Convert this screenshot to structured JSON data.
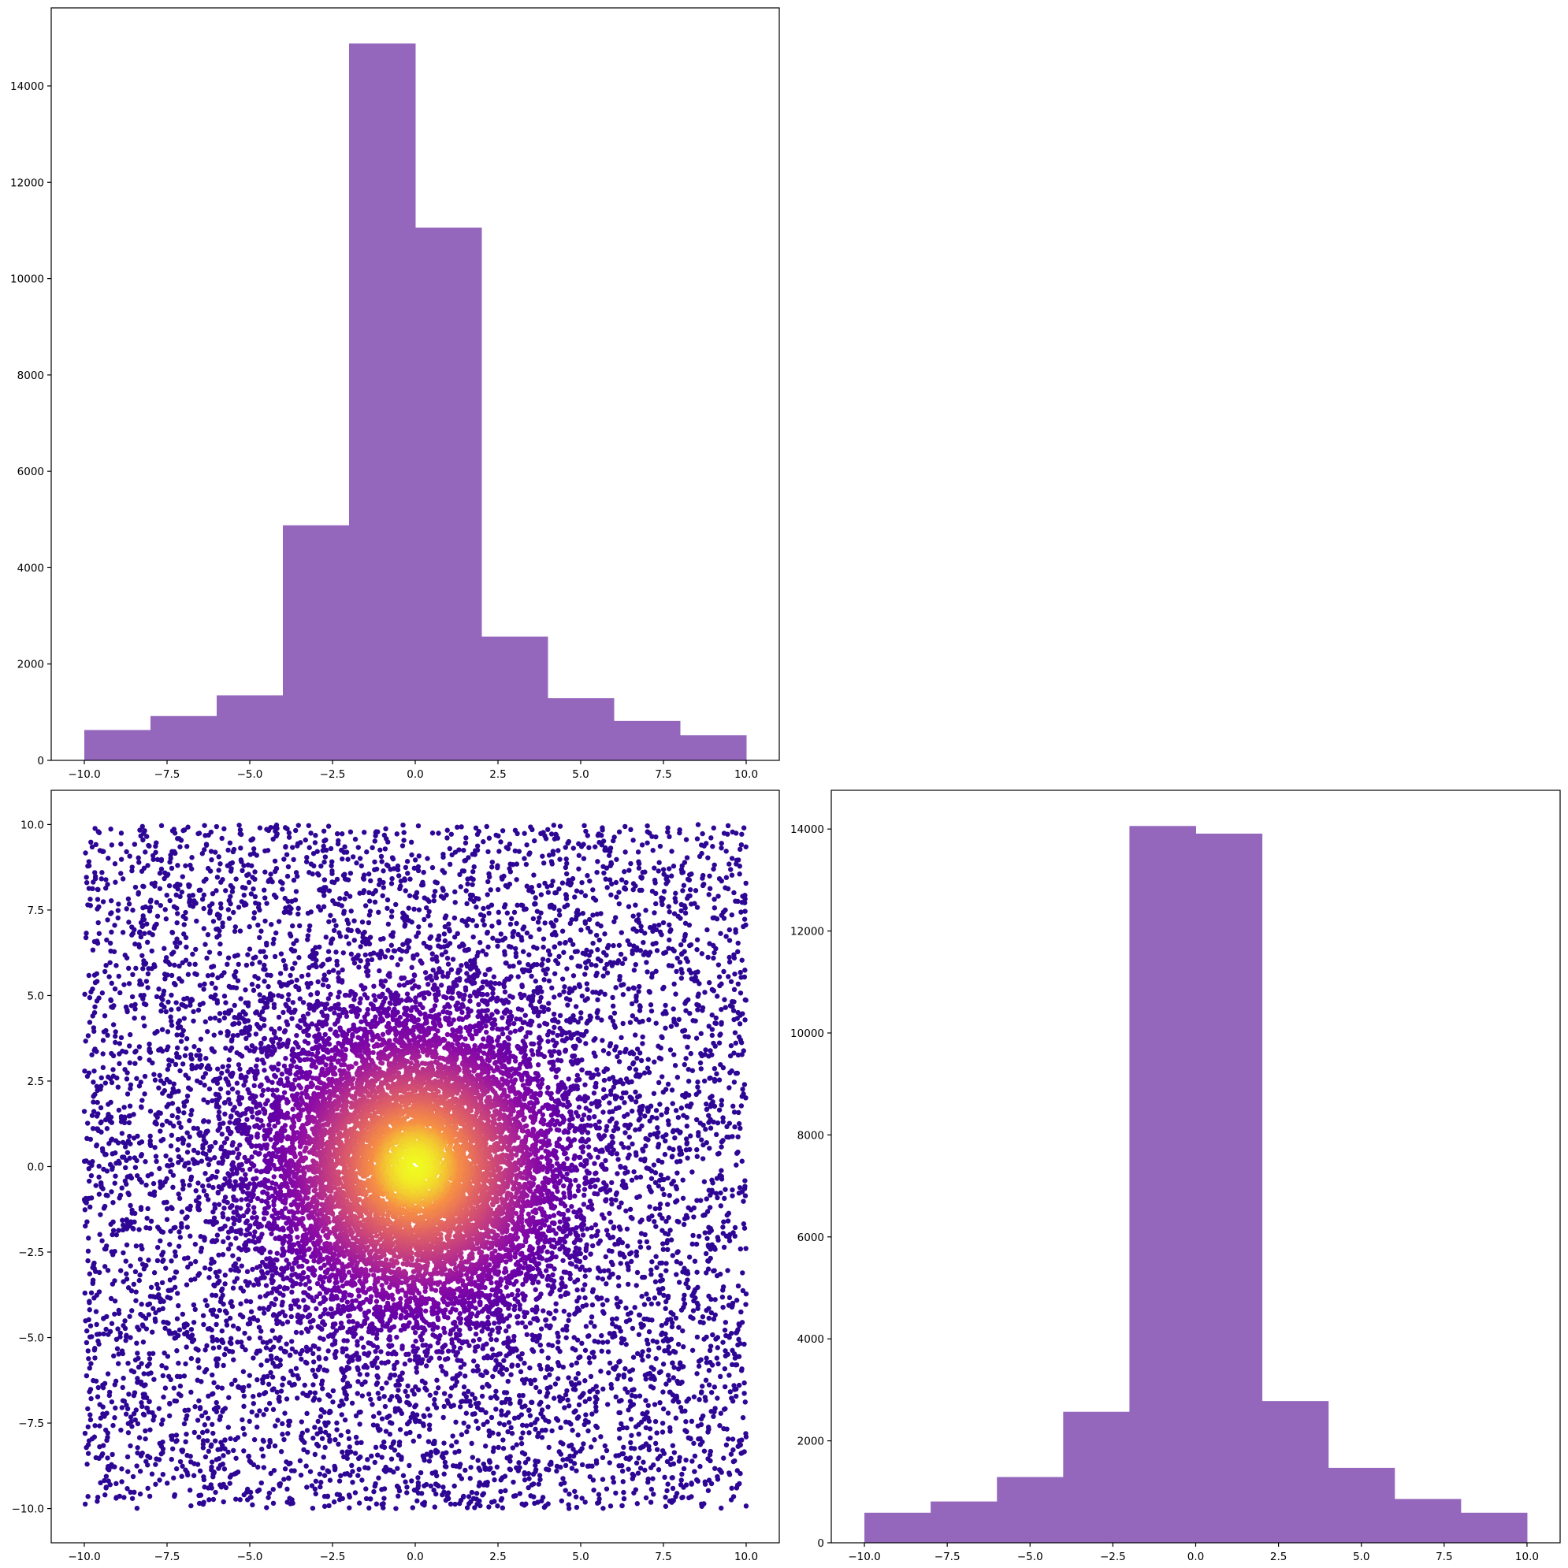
{
  "chart_data": [
    {
      "type": "bar",
      "panel": "top-left",
      "histogram": true,
      "bin_edges": [
        -10,
        -8,
        -6,
        -4,
        -2,
        0,
        2,
        4,
        6,
        8,
        10
      ],
      "values": [
        630,
        920,
        1350,
        4880,
        14880,
        11060,
        2570,
        1290,
        820,
        520
      ],
      "color": "#9467bd",
      "xlim": [
        -11,
        11
      ],
      "ylim": [
        0,
        15620
      ],
      "xticks": [
        -10.0,
        -7.5,
        -5.0,
        -2.5,
        0.0,
        2.5,
        5.0,
        7.5,
        10.0
      ],
      "xtick_labels": [
        "−10.0",
        "−7.5",
        "−5.0",
        "−2.5",
        "0.0",
        "2.5",
        "5.0",
        "7.5",
        "10.0"
      ],
      "yticks": [
        0,
        2000,
        4000,
        6000,
        8000,
        10000,
        12000,
        14000
      ],
      "ytick_labels": [
        "0",
        "2000",
        "4000",
        "6000",
        "8000",
        "10000",
        "12000",
        "14000"
      ]
    },
    {
      "type": "scatter",
      "panel": "bottom-left",
      "description_of_points": "about 40000 points on [-10,10] x [-10,10]; dense near origin; colored by density",
      "x_range": [
        -10,
        10
      ],
      "y_range": [
        -10,
        10
      ],
      "colormap": "plasma",
      "xlim": [
        -11,
        11
      ],
      "ylim": [
        -11,
        11
      ],
      "xticks": [
        -10.0,
        -7.5,
        -5.0,
        -2.5,
        0.0,
        2.5,
        5.0,
        7.5,
        10.0
      ],
      "xtick_labels": [
        "−10.0",
        "−7.5",
        "−5.0",
        "−2.5",
        "0.0",
        "2.5",
        "5.0",
        "7.5",
        "10.0"
      ],
      "yticks": [
        -10.0,
        -7.5,
        -5.0,
        -2.5,
        0.0,
        2.5,
        5.0,
        7.5,
        10.0
      ],
      "ytick_labels": [
        "−10.0",
        "−7.5",
        "−5.0",
        "−2.5",
        "0.0",
        "2.5",
        "5.0",
        "7.5",
        "10.0"
      ]
    },
    {
      "type": "bar",
      "panel": "bottom-right",
      "histogram": true,
      "bin_edges": [
        -10,
        -8,
        -6,
        -4,
        -2,
        0,
        2,
        4,
        6,
        8,
        10
      ],
      "values": [
        590,
        810,
        1290,
        2570,
        14060,
        13910,
        2780,
        1470,
        860,
        590
      ],
      "color": "#9467bd",
      "xlim": [
        -11,
        11
      ],
      "ylim": [
        0,
        14760
      ],
      "xticks": [
        -10.0,
        -7.5,
        -5.0,
        -2.5,
        0.0,
        2.5,
        5.0,
        7.5,
        10.0
      ],
      "xtick_labels": [
        "−10.0",
        "−7.5",
        "−5.0",
        "−2.5",
        "0.0",
        "2.5",
        "5.0",
        "7.5",
        "10.0"
      ],
      "yticks": [
        0,
        2000,
        4000,
        6000,
        8000,
        10000,
        12000,
        14000
      ],
      "ytick_labels": [
        "0",
        "2000",
        "4000",
        "6000",
        "8000",
        "10000",
        "12000",
        "14000"
      ]
    }
  ]
}
